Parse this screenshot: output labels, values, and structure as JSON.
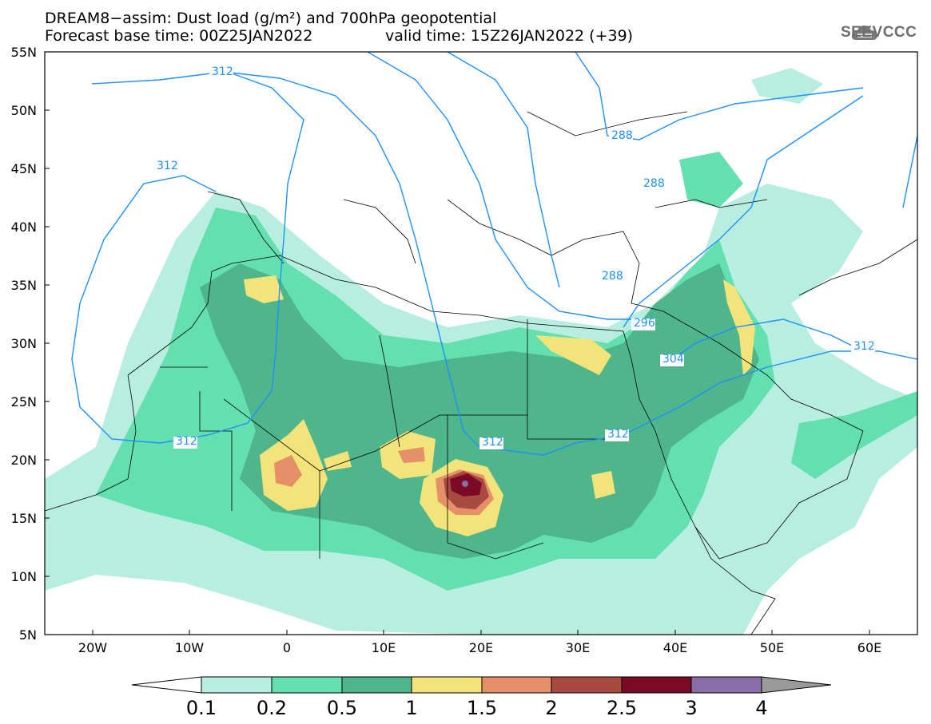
{
  "title": {
    "line1": "DREAM8−assim: Dust load (g/m²) and 700hPa geopotential",
    "line2": "Forecast base time: 00Z25JAN2022",
    "valid": "valid time: 15Z26JAN2022 (+39)"
  },
  "logo": {
    "text": "SEEVCCC",
    "icon": "cloud-icon"
  },
  "axes": {
    "lat_labels": [
      "55N",
      "50N",
      "45N",
      "40N",
      "35N",
      "30N",
      "25N",
      "20N",
      "15N",
      "10N",
      "5N"
    ],
    "lon_labels": [
      "20W",
      "10W",
      "0",
      "10E",
      "20E",
      "30E",
      "40E",
      "50E",
      "60E"
    ]
  },
  "contour_labels": [
    "312",
    "312",
    "312",
    "312",
    "312",
    "312",
    "288",
    "288",
    "288",
    "296",
    "304"
  ],
  "colorbar": {
    "ticks": [
      "0.1",
      "0.2",
      "0.5",
      "1",
      "1.5",
      "2",
      "2.5",
      "3",
      "4"
    ],
    "colors": [
      "#ffffff",
      "#b8eee0",
      "#64dfb0",
      "#4fb58b",
      "#f2e47a",
      "#e6906a",
      "#a84a40",
      "#7a0a25",
      "#8a6ea8",
      "#9a9a9a"
    ]
  }
}
